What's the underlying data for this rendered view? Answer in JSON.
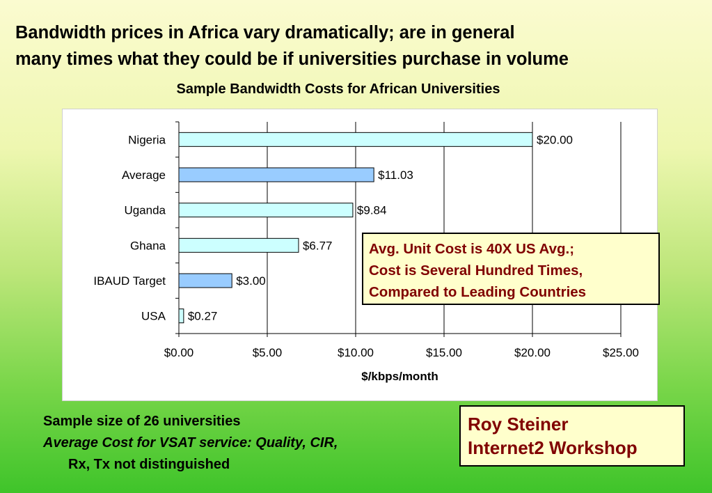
{
  "headline": {
    "line1": "Bandwidth prices in Africa vary dramatically; are in general",
    "line2": "many times what they could be if universities purchase in volume"
  },
  "chart_data": {
    "type": "bar",
    "orientation": "horizontal",
    "title": "Sample Bandwidth Costs for African Universities",
    "xlabel": "$/kbps/month",
    "ylabel": "",
    "categories": [
      "Nigeria",
      "Average",
      "Uganda",
      "Ghana",
      "IBAUD Target",
      "USA"
    ],
    "values": [
      20.0,
      11.03,
      9.84,
      6.77,
      3.0,
      0.27
    ],
    "data_labels": [
      "$20.00",
      "$11.03",
      "$9.84",
      "$6.77",
      "$3.00",
      "$0.27"
    ],
    "bar_colors": [
      "#ccffff",
      "#99ccff",
      "#ccffff",
      "#ccffff",
      "#99ccff",
      "#ccffff"
    ],
    "xlim": [
      0,
      25
    ],
    "xticks": [
      0,
      5,
      10,
      15,
      20,
      25
    ],
    "xtick_labels": [
      "$0.00",
      "$5.00",
      "$10.00",
      "$15.00",
      "$20.00",
      "$25.00"
    ],
    "grid": "vertical",
    "legend": "none"
  },
  "callout": {
    "line1": "Avg. Unit Cost is 40X US Avg.;",
    "line2": "Cost is Several Hundred Times,",
    "line3": "Compared to Leading Countries"
  },
  "notes": {
    "line1": "Sample size of 26 universities",
    "line2": "Average Cost for VSAT service: Quality, CIR,",
    "line3": "Rx, Tx not distinguished"
  },
  "credit": {
    "line1": "Roy Steiner",
    "line2": "Internet2 Workshop"
  },
  "colors": {
    "accent_text": "#800000",
    "callout_fill": "#ffffcc"
  }
}
